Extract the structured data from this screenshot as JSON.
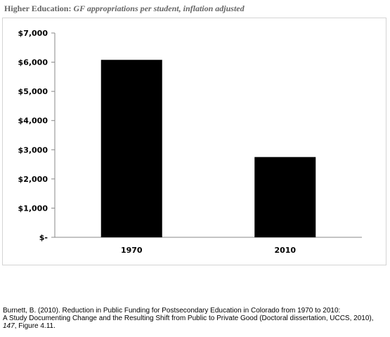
{
  "header": {
    "title_bold": "Higher Education:",
    "title_italic": "GF appropriations per student, inflation adjusted"
  },
  "chart_data": {
    "type": "bar",
    "categories": [
      "1970",
      "2010"
    ],
    "values": [
      6080,
      2750
    ],
    "ylim": [
      0,
      7000
    ],
    "yticks": [
      0,
      1000,
      2000,
      3000,
      4000,
      5000,
      6000,
      7000
    ],
    "ytick_labels": [
      "$-",
      "$1,000",
      "$2,000",
      "$3,000",
      "$4,000",
      "$5,000",
      "$6,000",
      "$7,000"
    ],
    "grid": false,
    "legend": "none",
    "bar_color": "#000000"
  },
  "citation": {
    "line1": "Burnett, B. (2010). Reduction in Public Funding for Postsecondary Education in Colorado from 1970 to 2010:",
    "line2_pre": "A Study Documenting Change and the Resulting Shift from Public to Private Good  (Doctoral dissertation, UCCS, 2010), ",
    "line2_em": "147",
    "line2_post": ", Figure 4.11."
  }
}
